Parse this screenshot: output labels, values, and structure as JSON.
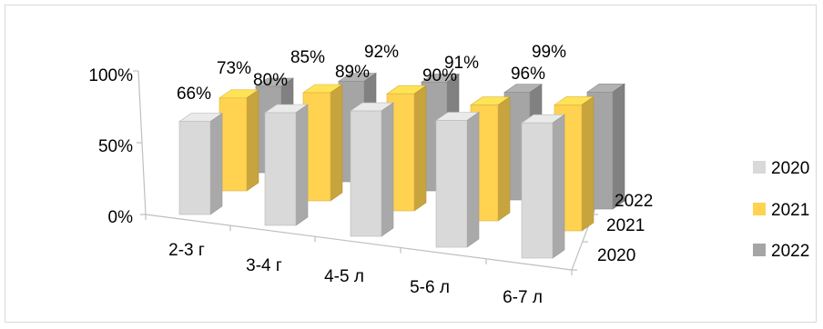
{
  "chart_data": {
    "type": "bar",
    "subtype": "3d-clustered-column",
    "categories": [
      "2-3 г",
      "3-4 г",
      "4-5 л",
      "5-6 л",
      "6-7 л"
    ],
    "series": [
      {
        "name": "2020",
        "color": "#d9d9d9",
        "values": [
          66,
          80,
          89,
          90,
          96
        ]
      },
      {
        "name": "2021",
        "color": "#ffd250",
        "values": [
          73,
          85,
          92,
          91,
          99
        ]
      },
      {
        "name": "2022",
        "color": "#a5a5a5",
        "values": [
          73,
          85,
          92,
          91,
          99
        ]
      }
    ],
    "data_labels": {
      "2020": [
        "66%",
        "80%",
        "89%",
        "90%",
        "96%"
      ],
      "2021": [
        "73%",
        "85%",
        "92%",
        "91%",
        "99%"
      ]
    },
    "y_ticks": [
      "0%",
      "50%",
      "100%"
    ],
    "depth_labels": [
      "2020",
      "2021",
      "2022"
    ],
    "ylim": [
      0,
      100
    ],
    "legend": {
      "position": "right",
      "entries": [
        "2020",
        "2021",
        "2022"
      ]
    },
    "grid": false
  }
}
